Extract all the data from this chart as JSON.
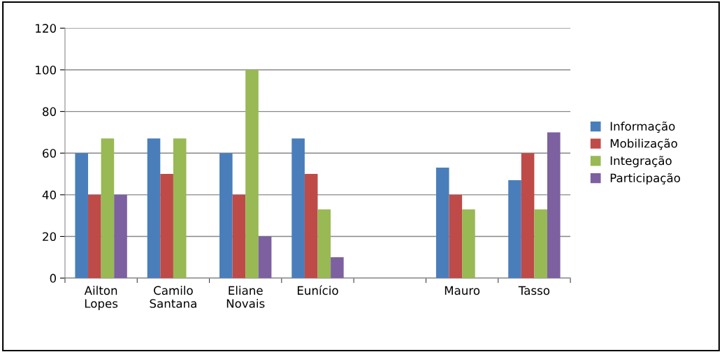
{
  "chart_data": {
    "type": "bar",
    "categories": [
      "Ailton\nLopes",
      "Camilo\nSantana",
      "Eliane\nNovais",
      "Eunício",
      null,
      "Mauro",
      "Tasso"
    ],
    "series": [
      {
        "name": "Informação",
        "color": "#4a7ebb",
        "values": [
          60,
          67,
          60,
          67,
          null,
          53,
          47
        ]
      },
      {
        "name": "Mobilização",
        "color": "#be4b48",
        "values": [
          40,
          50,
          40,
          50,
          null,
          40,
          60
        ]
      },
      {
        "name": "Integração",
        "color": "#98b954",
        "values": [
          67,
          67,
          100,
          33,
          null,
          33,
          33
        ]
      },
      {
        "name": "Participação",
        "color": "#7d60a0",
        "values": [
          40,
          null,
          20,
          10,
          null,
          null,
          70
        ]
      }
    ],
    "ylim": [
      0,
      120
    ],
    "yticks": [
      0,
      20,
      40,
      60,
      80,
      100,
      120
    ],
    "grid": "y",
    "legend": "right"
  }
}
